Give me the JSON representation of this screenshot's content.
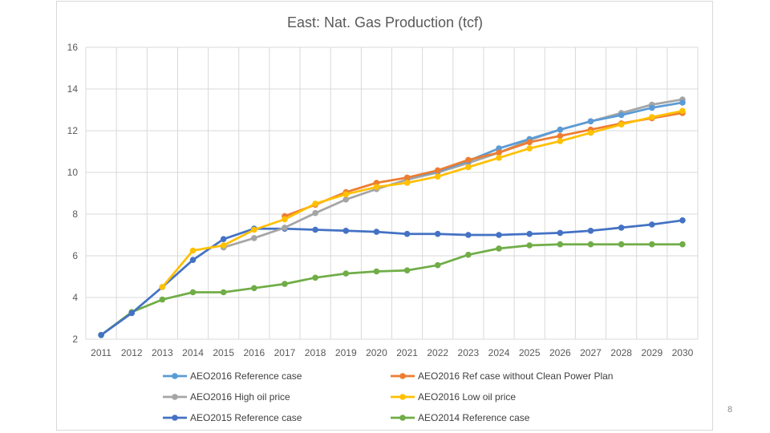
{
  "page": {
    "number": "8"
  },
  "colors": {
    "grid": "#d9d9d9",
    "axis_text": "#595959",
    "series": [
      "#5b9bd5",
      "#ed7d31",
      "#a5a5a5",
      "#ffc000",
      "#4472c4",
      "#70ad47"
    ]
  },
  "chart_data": {
    "type": "line",
    "title": "East: Nat. Gas Production (tcf)",
    "xlabel": "",
    "ylabel": "",
    "ylim": [
      2,
      16
    ],
    "yticks": [
      2,
      4,
      6,
      8,
      10,
      12,
      14,
      16
    ],
    "grid": true,
    "legend_position": "bottom",
    "categories": [
      "2011",
      "2012",
      "2013",
      "2014",
      "2015",
      "2016",
      "2017",
      "2018",
      "2019",
      "2020",
      "2021",
      "2022",
      "2023",
      "2024",
      "2025",
      "2026",
      "2027",
      "2028",
      "2029",
      "2030"
    ],
    "series": [
      {
        "name": "AEO2016 Reference case",
        "values": [
          null,
          null,
          null,
          null,
          null,
          null,
          null,
          null,
          null,
          null,
          9.75,
          10.05,
          10.55,
          11.15,
          11.6,
          12.05,
          12.45,
          12.75,
          13.1,
          13.35
        ]
      },
      {
        "name": "AEO2016 Ref case without Clean Power Plan",
        "values": [
          null,
          null,
          null,
          null,
          null,
          null,
          7.9,
          8.45,
          9.05,
          9.5,
          9.75,
          10.1,
          10.6,
          10.95,
          11.45,
          11.75,
          12.05,
          12.35,
          12.6,
          12.85
        ]
      },
      {
        "name": "AEO2016 High oil price",
        "values": [
          null,
          null,
          null,
          null,
          6.4,
          6.85,
          7.35,
          8.05,
          8.7,
          9.2,
          9.65,
          10.0,
          10.45,
          10.95,
          11.55,
          12.05,
          12.45,
          12.85,
          13.25,
          13.5
        ]
      },
      {
        "name": "AEO2016 Low oil price",
        "values": [
          null,
          null,
          4.5,
          6.25,
          6.5,
          7.25,
          7.75,
          8.5,
          8.95,
          9.3,
          9.5,
          9.8,
          10.25,
          10.7,
          11.15,
          11.5,
          11.9,
          12.3,
          12.65,
          12.95
        ]
      },
      {
        "name": "AEO2015 Reference case",
        "values": [
          2.2,
          3.25,
          4.5,
          5.8,
          6.8,
          7.3,
          7.3,
          7.25,
          7.2,
          7.15,
          7.05,
          7.05,
          7.0,
          7.0,
          7.05,
          7.1,
          7.2,
          7.35,
          7.5,
          7.7
        ]
      },
      {
        "name": "AEO2014 Reference case",
        "values": [
          2.2,
          3.3,
          3.9,
          4.25,
          4.25,
          4.45,
          4.65,
          4.95,
          5.15,
          5.25,
          5.3,
          5.55,
          6.05,
          6.35,
          6.5,
          6.55,
          6.55,
          6.55,
          6.55,
          6.55
        ]
      }
    ]
  }
}
